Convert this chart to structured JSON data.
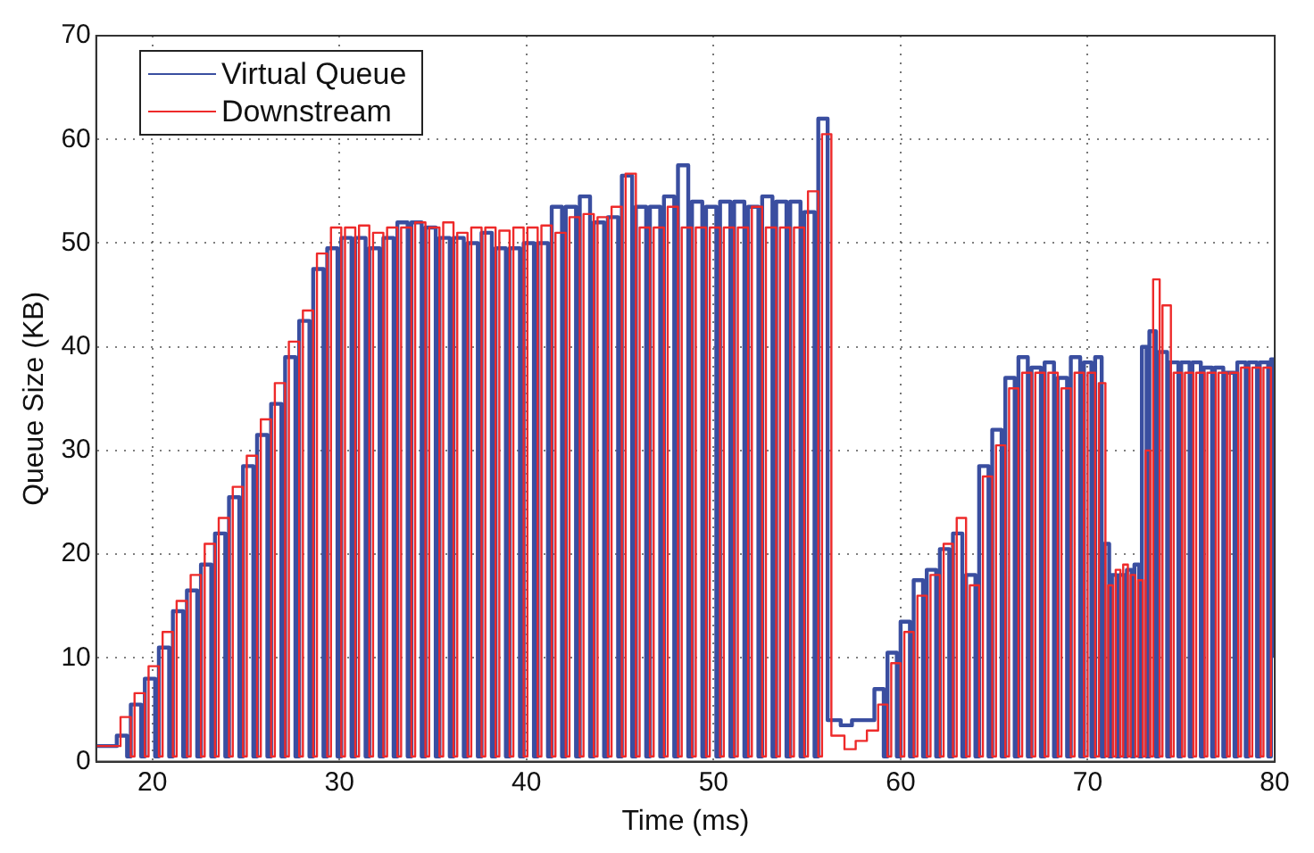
{
  "chart_data": {
    "type": "step",
    "xlabel": "Time (ms)",
    "ylabel": "Queue Size (KB)",
    "xlim": [
      17,
      80
    ],
    "xticks": [
      20,
      30,
      40,
      50,
      60,
      70,
      80
    ],
    "ylim": [
      0,
      70
    ],
    "yticks": [
      0,
      10,
      20,
      30,
      40,
      50,
      60,
      70
    ],
    "grid": true,
    "legend": "top left",
    "line_style": "solid",
    "marker": "none",
    "series": [
      {
        "name": "Virtual Queue",
        "color": "#3a4ea0",
        "x": [
          17,
          18.1,
          18.65,
          18.85,
          19.4,
          19.6,
          20.15,
          20.35,
          20.9,
          21.1,
          21.65,
          21.85,
          22.4,
          22.6,
          23.15,
          23.35,
          23.9,
          24.1,
          24.65,
          24.85,
          25.4,
          25.6,
          26.15,
          26.35,
          26.9,
          27.1,
          27.65,
          27.85,
          28.4,
          28.6,
          29.15,
          29.35,
          29.9,
          30.1,
          30.65,
          30.85,
          31.4,
          31.6,
          32.15,
          32.35,
          32.9,
          33.1,
          33.65,
          33.85,
          34.4,
          34.6,
          35.15,
          35.35,
          35.9,
          36.1,
          36.65,
          36.85,
          37.4,
          37.6,
          38.15,
          38.35,
          38.9,
          39.1,
          39.65,
          39.85,
          40.4,
          40.6,
          41.15,
          41.35,
          41.9,
          42.1,
          42.65,
          42.85,
          43.4,
          43.6,
          44.15,
          44.35,
          44.9,
          45.1,
          45.65,
          45.85,
          46.4,
          46.6,
          47.15,
          47.35,
          47.9,
          48.1,
          48.65,
          48.85,
          49.4,
          49.6,
          50.15,
          50.35,
          50.9,
          51.1,
          51.65,
          51.85,
          52.4,
          52.6,
          53.15,
          53.35,
          53.9,
          54.1,
          54.65,
          54.85,
          55.4,
          55.6,
          56.1,
          56.8,
          57.4,
          58.0,
          58.6,
          59.1,
          59.3,
          59.8,
          60.0,
          60.5,
          60.7,
          61.2,
          61.4,
          61.9,
          62.1,
          62.6,
          62.8,
          63.3,
          63.5,
          64.0,
          64.2,
          64.7,
          64.9,
          65.4,
          65.6,
          66.1,
          66.3,
          66.8,
          67.0,
          67.5,
          67.7,
          68.2,
          68.4,
          68.9,
          69.1,
          69.6,
          69.8,
          70.2,
          70.4,
          70.75,
          70.9,
          71.15,
          71.3,
          71.55,
          71.7,
          71.95,
          72.1,
          72.35,
          72.5,
          72.75,
          72.9,
          73.15,
          73.3,
          73.65,
          73.8,
          74.25,
          74.4,
          74.85,
          75.0,
          75.45,
          75.6,
          76.05,
          76.2,
          76.65,
          76.8,
          77.25,
          77.4,
          77.85,
          78.0,
          78.45,
          78.6,
          79.05,
          79.2,
          79.65,
          79.8,
          80
        ],
        "values": [
          1.5,
          2.5,
          0.5,
          5.5,
          0.5,
          8,
          0.5,
          11,
          0.5,
          14.5,
          0.5,
          16.5,
          0.5,
          19,
          0.5,
          22,
          0.5,
          25.5,
          0.5,
          28.5,
          0.5,
          31.5,
          0.5,
          34.5,
          0.5,
          39,
          0.5,
          42.5,
          0.5,
          47.5,
          0.5,
          49.5,
          0.5,
          50.5,
          0.5,
          50.5,
          0.5,
          49.5,
          0.5,
          50.5,
          0.5,
          52,
          0.5,
          52,
          0.5,
          51.5,
          0.5,
          50.5,
          0.5,
          50.5,
          0.5,
          50,
          0.5,
          51,
          0.5,
          49.5,
          0.5,
          49.5,
          0.5,
          50,
          0.5,
          50,
          0.5,
          53.5,
          0.5,
          53.5,
          0.5,
          54.5,
          0.5,
          52,
          0.5,
          52.5,
          0.5,
          56.5,
          0.5,
          53.5,
          0.5,
          53.5,
          0.5,
          54.5,
          0.5,
          57.5,
          0.5,
          54,
          0.5,
          53.5,
          0.5,
          54,
          0.5,
          54,
          0.5,
          53.5,
          0.5,
          54.5,
          0.5,
          54,
          0.5,
          54,
          0.5,
          53,
          0.5,
          62,
          4,
          3.5,
          4,
          4,
          7,
          0.5,
          10.5,
          0.5,
          13.5,
          0.5,
          17.5,
          0.5,
          18.5,
          0.5,
          20.5,
          0.5,
          22,
          0.5,
          18,
          0.5,
          28.5,
          0.5,
          32,
          0.5,
          37,
          0.5,
          39,
          0.5,
          38,
          0.5,
          38.5,
          0.5,
          37,
          0.5,
          39,
          0.5,
          38.5,
          0.5,
          39,
          0.5,
          21,
          0.5,
          18,
          0.5,
          18,
          0.5,
          18.5,
          0.5,
          19,
          0.5,
          40,
          0.5,
          41.5,
          0.5,
          39.5,
          0.5,
          38.5,
          0.5,
          38.5,
          0.5,
          38.5,
          0.5,
          38,
          0.5,
          38,
          0.5,
          37.5,
          0.5,
          38.5,
          0.5,
          38.5,
          0.5,
          38.5,
          0.5,
          38.8,
          10
        ]
      },
      {
        "name": "Downstream",
        "color": "#ee2a2a",
        "x": [
          17,
          18.3,
          18.85,
          19.05,
          19.6,
          19.8,
          20.35,
          20.55,
          21.1,
          21.3,
          21.85,
          22.05,
          22.6,
          22.8,
          23.35,
          23.55,
          24.1,
          24.3,
          24.85,
          25.05,
          25.6,
          25.8,
          26.35,
          26.55,
          27.1,
          27.3,
          27.85,
          28.05,
          28.6,
          28.8,
          29.35,
          29.55,
          30.1,
          30.3,
          30.85,
          31.05,
          31.6,
          31.8,
          32.35,
          32.55,
          33.1,
          33.3,
          33.85,
          34.05,
          34.6,
          34.8,
          35.35,
          35.55,
          36.1,
          36.3,
          36.85,
          37.05,
          37.6,
          37.8,
          38.35,
          38.55,
          39.1,
          39.3,
          39.85,
          40.05,
          40.6,
          40.8,
          41.35,
          41.55,
          42.1,
          42.3,
          42.85,
          43.05,
          43.6,
          43.8,
          44.35,
          44.55,
          45.1,
          45.3,
          45.85,
          46.05,
          46.6,
          46.8,
          47.35,
          47.55,
          48.1,
          48.3,
          48.85,
          49.05,
          49.6,
          49.8,
          50.35,
          50.55,
          51.1,
          51.3,
          51.85,
          52.05,
          52.6,
          52.8,
          53.35,
          53.55,
          54.1,
          54.3,
          54.85,
          55.05,
          55.6,
          55.8,
          56.3,
          57.0,
          57.6,
          58.2,
          58.8,
          59.3,
          59.5,
          60.0,
          60.2,
          60.7,
          60.9,
          61.4,
          61.6,
          62.1,
          62.3,
          62.8,
          63.0,
          63.5,
          63.7,
          64.2,
          64.4,
          64.9,
          65.1,
          65.6,
          65.8,
          66.3,
          66.5,
          67.0,
          67.2,
          67.7,
          67.9,
          68.4,
          68.6,
          69.1,
          69.3,
          69.8,
          70.0,
          70.4,
          70.6,
          70.95,
          71.1,
          71.35,
          71.5,
          71.75,
          71.9,
          72.15,
          72.3,
          72.55,
          72.7,
          72.95,
          73.1,
          73.35,
          73.5,
          73.85,
          74.0,
          74.45,
          74.6,
          75.05,
          75.2,
          75.65,
          75.8,
          76.25,
          76.4,
          76.85,
          77.0,
          77.45,
          77.6,
          78.05,
          78.2,
          78.65,
          78.8,
          79.25,
          79.4,
          79.8
        ],
        "values": [
          1.5,
          4.3,
          0.5,
          6.6,
          0.5,
          9.2,
          0.5,
          12.5,
          0.5,
          15.5,
          0.5,
          18,
          0.5,
          21,
          0.5,
          23.5,
          0.5,
          26.5,
          0.5,
          29.5,
          0.5,
          33,
          0.5,
          36.5,
          0.5,
          40.5,
          0.5,
          43.5,
          0.5,
          49,
          0.5,
          51.5,
          0.5,
          51.5,
          0.5,
          51.7,
          0.5,
          51,
          0.5,
          51.5,
          0.5,
          51.5,
          0.5,
          52,
          0.5,
          51.5,
          0.5,
          52,
          0.5,
          51,
          0.5,
          51.5,
          0.5,
          51.5,
          0.5,
          51.2,
          0.5,
          51.5,
          0.5,
          51.5,
          0.5,
          51.7,
          0.5,
          51,
          0.5,
          52.5,
          0.5,
          52.8,
          0.5,
          52.5,
          0.5,
          53.5,
          0.5,
          56.7,
          0.5,
          51.5,
          0.5,
          51.5,
          0.5,
          53.5,
          0.5,
          51.5,
          0.5,
          51.5,
          0.5,
          51.5,
          0.5,
          51.5,
          0.5,
          51.5,
          0.5,
          53.5,
          0.5,
          51.5,
          0.5,
          51.5,
          0.5,
          51.5,
          0.5,
          55,
          0.5,
          60.5,
          2.5,
          1.2,
          2,
          3,
          5.5,
          0.5,
          9.5,
          0.5,
          12.5,
          0.5,
          16,
          0.5,
          18,
          0.5,
          21,
          0.5,
          23.5,
          0.5,
          17,
          0.5,
          27.5,
          0.5,
          30.5,
          0.5,
          36,
          0.5,
          37.5,
          0.5,
          37.5,
          0.5,
          37.5,
          0.5,
          36,
          0.5,
          37.5,
          0.5,
          37.5,
          0.5,
          36.5,
          0.5,
          17,
          0.5,
          18.5,
          0.5,
          19,
          0.5,
          18,
          0.5,
          17.5,
          0.5,
          30,
          0.5,
          46.5,
          0.5,
          44,
          0.5,
          37.5,
          0.5,
          37.5,
          0.5,
          37.5,
          0.5,
          37.5,
          0.5,
          37.5,
          0.5,
          37.5,
          0.5,
          38,
          0.5,
          38,
          0.5,
          38,
          0.5
        ]
      }
    ]
  }
}
